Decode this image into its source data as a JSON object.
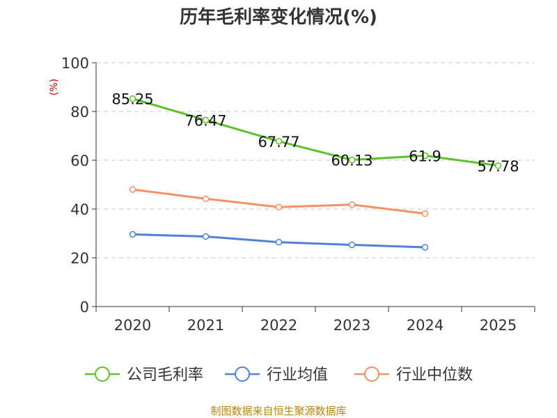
{
  "chart_data": {
    "type": "line",
    "title": "历年毛利率变化情况(%)",
    "ylabel": "(%)",
    "xlabel": "",
    "ylim": [
      0,
      100
    ],
    "yticks": [
      0,
      20,
      40,
      60,
      80,
      100
    ],
    "categories": [
      "2020",
      "2021",
      "2022",
      "2023",
      "2024",
      "2025"
    ],
    "grid": true,
    "legend_position": "bottom",
    "series": [
      {
        "name": "公司毛利率",
        "color": "#5cc22b",
        "values": [
          85.25,
          76.47,
          67.77,
          60.13,
          61.9,
          57.78
        ],
        "labels": [
          "85.25",
          "76.47",
          "67.77",
          "60.13",
          "61.9",
          "57.78"
        ],
        "show_labels": true
      },
      {
        "name": "行业均值",
        "color": "#4f81d9",
        "values": [
          29.6,
          28.7,
          26.4,
          25.3,
          24.3,
          null
        ],
        "show_labels": false
      },
      {
        "name": "行业中位数",
        "color": "#f59162",
        "values": [
          48.0,
          44.2,
          40.8,
          41.8,
          38.1,
          null
        ],
        "show_labels": false
      }
    ]
  },
  "source": "制图数据来自恒生聚源数据库"
}
